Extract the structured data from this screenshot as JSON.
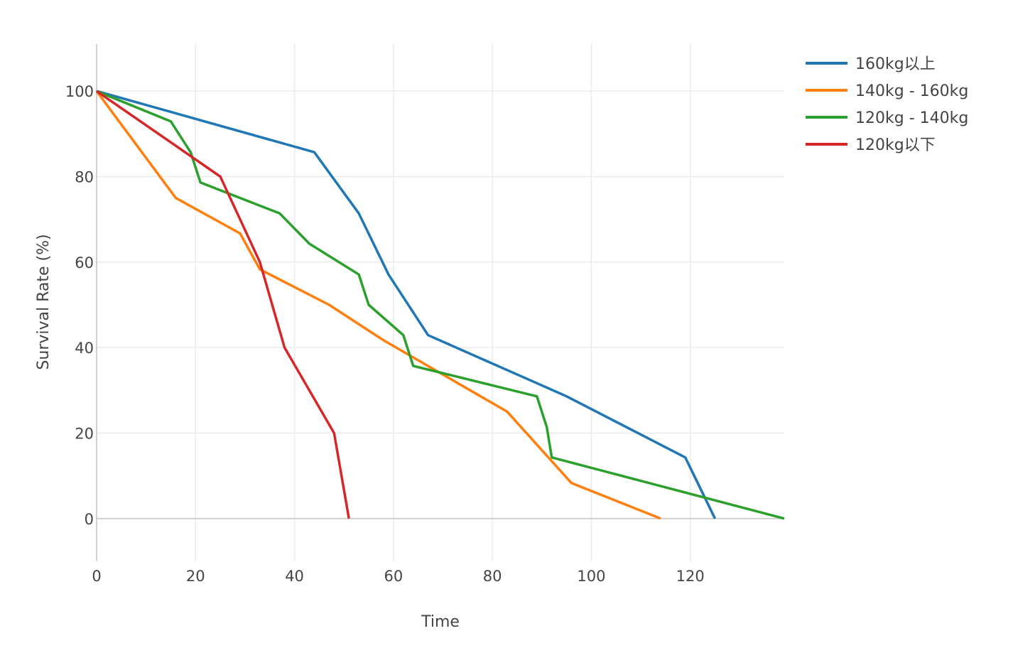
{
  "chart_data": {
    "type": "line",
    "title": "",
    "xlabel": "Time",
    "ylabel": "Survival Rate (%)",
    "xlim": [
      0,
      139
    ],
    "ylim": [
      -10,
      111
    ],
    "xticks": [
      0,
      20,
      40,
      60,
      80,
      100,
      120
    ],
    "yticks": [
      0,
      20,
      40,
      60,
      80,
      100
    ],
    "grid": true,
    "legend_position": "top-right",
    "series": [
      {
        "name": "160kg以上",
        "color": "#1f77b4",
        "x": [
          0,
          44,
          53,
          59,
          67,
          95,
          119,
          125
        ],
        "y": [
          100,
          85.7,
          71.4,
          57.1,
          42.9,
          28.6,
          14.3,
          0
        ]
      },
      {
        "name": "140kg - 160kg",
        "color": "#ff7f0e",
        "x": [
          0,
          16,
          29,
          33,
          47,
          58,
          83,
          96,
          114
        ],
        "y": [
          100,
          75,
          66.7,
          58.3,
          50,
          41.7,
          25,
          8.3,
          0
        ]
      },
      {
        "name": "120kg - 140kg",
        "color": "#2ca02c",
        "x": [
          0,
          15,
          19,
          21,
          37,
          43,
          53,
          55,
          62,
          64,
          89,
          91,
          92,
          139
        ],
        "y": [
          100,
          92.9,
          85.7,
          78.6,
          71.4,
          64.3,
          57.1,
          50,
          42.9,
          35.7,
          28.6,
          21.4,
          14.3,
          0
        ]
      },
      {
        "name": "120kg以下",
        "color": "#d62728",
        "x": [
          0,
          25,
          33,
          38,
          48,
          51
        ],
        "y": [
          100,
          80,
          60,
          40,
          20,
          0
        ]
      }
    ]
  }
}
